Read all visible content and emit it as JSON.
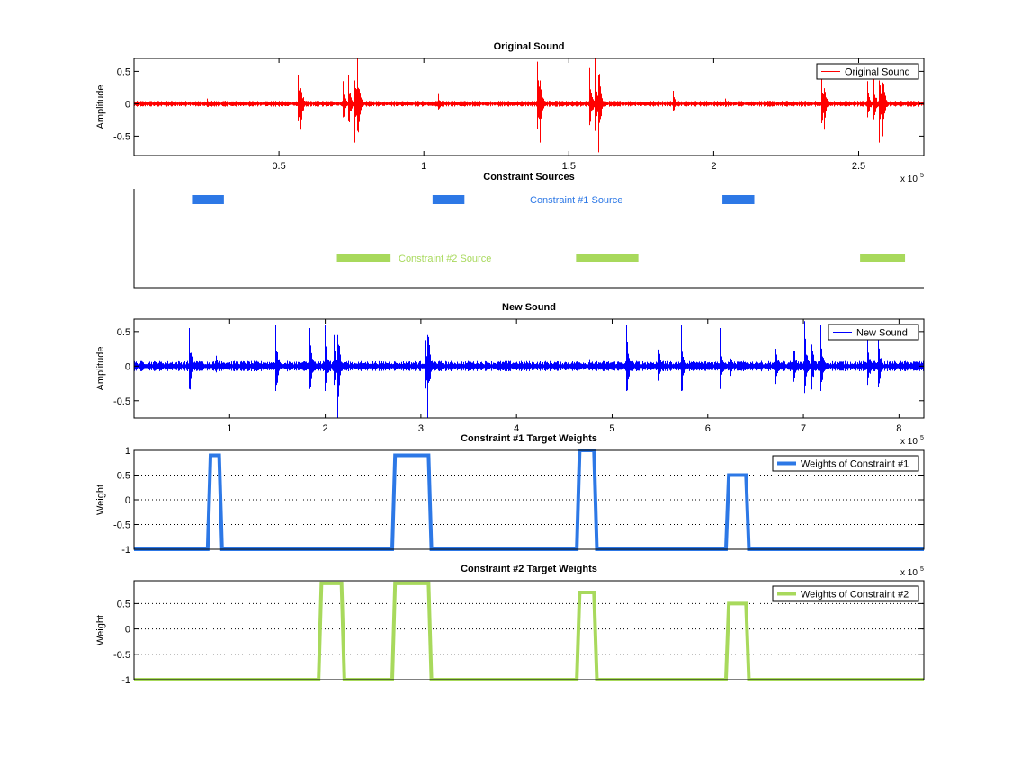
{
  "chart_data": [
    {
      "type": "line",
      "title": "Original Sound",
      "ylabel": "Amplitude",
      "xlim": [
        1,
        272500
      ],
      "ylim": [
        -0.8,
        0.7
      ],
      "xticks": [
        50000,
        100000,
        150000,
        200000,
        250000
      ],
      "xtick_labels": [
        "0.5",
        "1",
        "1.5",
        "2",
        "2.5"
      ],
      "x_exponent": "x 10",
      "x_exponent_power": "5",
      "yticks": [
        0.5,
        0,
        -0.5
      ],
      "ytick_labels": [
        "0.5",
        "0",
        "-0.5"
      ],
      "legend": {
        "label": "Original Sound",
        "position": "top-right"
      },
      "color": "#ff0000",
      "noise_level": 0.03,
      "events": [
        {
          "x": 25000,
          "amp": 0.08
        },
        {
          "x": 56500,
          "amp": 0.45
        },
        {
          "x": 57500,
          "amp": -0.4
        },
        {
          "x": 72000,
          "amp": 0.35
        },
        {
          "x": 74000,
          "amp": 0.45
        },
        {
          "x": 76000,
          "amp": -0.6
        },
        {
          "x": 77000,
          "amp": 0.7
        },
        {
          "x": 105000,
          "amp": 0.15
        },
        {
          "x": 139000,
          "amp": 0.65
        },
        {
          "x": 140000,
          "amp": -0.6
        },
        {
          "x": 157000,
          "amp": 0.55
        },
        {
          "x": 159000,
          "amp": 0.7
        },
        {
          "x": 160000,
          "amp": -0.75
        },
        {
          "x": 186000,
          "amp": 0.2
        },
        {
          "x": 204000,
          "amp": 0.08
        },
        {
          "x": 237000,
          "amp": 0.5
        },
        {
          "x": 238000,
          "amp": -0.4
        },
        {
          "x": 253000,
          "amp": 0.35
        },
        {
          "x": 255000,
          "amp": 0.4
        },
        {
          "x": 257000,
          "amp": -0.6
        },
        {
          "x": 258000,
          "amp": -0.8
        }
      ]
    },
    {
      "type": "bar",
      "title": "Constraint Sources",
      "xlim": [
        1,
        272500
      ],
      "series": [
        {
          "name": "Constraint #1 Source",
          "color": "#2d78e6",
          "row": 1,
          "intervals": [
            [
              20000,
              31000
            ],
            [
              103000,
              114000
            ],
            [
              203000,
              214000
            ]
          ]
        },
        {
          "name": "Constraint #2 Source",
          "color": "#a8d95c",
          "row": 2,
          "intervals": [
            [
              70000,
              88500
            ],
            [
              152500,
              174000
            ],
            [
              250500,
              266000
            ]
          ]
        }
      ]
    },
    {
      "type": "line",
      "title": "New Sound",
      "ylabel": "Amplitude",
      "xlim": [
        1,
        826000
      ],
      "ylim": [
        -0.75,
        0.68
      ],
      "xticks": [
        100000,
        200000,
        300000,
        400000,
        500000,
        600000,
        700000,
        800000
      ],
      "xtick_labels": [
        "1",
        "2",
        "3",
        "4",
        "5",
        "6",
        "7",
        "8"
      ],
      "x_exponent": "x 10",
      "x_exponent_power": "5",
      "yticks": [
        0.5,
        0,
        -0.5
      ],
      "ytick_labels": [
        "0.5",
        "0",
        "-0.5"
      ],
      "legend": {
        "label": "New Sound",
        "position": "top-right"
      },
      "color": "#0000ff",
      "noise_level": 0.05,
      "events": [
        {
          "x": 57000,
          "amp": 0.55
        },
        {
          "x": 86000,
          "amp": 0.15
        },
        {
          "x": 148000,
          "amp": 0.6
        },
        {
          "x": 183000,
          "amp": 0.55
        },
        {
          "x": 199000,
          "amp": 0.6
        },
        {
          "x": 209000,
          "amp": 0.45
        },
        {
          "x": 213000,
          "amp": -0.75
        },
        {
          "x": 304000,
          "amp": 0.6
        },
        {
          "x": 307000,
          "amp": -0.75
        },
        {
          "x": 476000,
          "amp": 0.1
        },
        {
          "x": 515000,
          "amp": 0.6
        },
        {
          "x": 548000,
          "amp": 0.5
        },
        {
          "x": 572000,
          "amp": 0.6
        },
        {
          "x": 612000,
          "amp": 0.55
        },
        {
          "x": 623000,
          "amp": 0.25
        },
        {
          "x": 670000,
          "amp": 0.5
        },
        {
          "x": 689000,
          "amp": 0.55
        },
        {
          "x": 701000,
          "amp": 0.65
        },
        {
          "x": 707000,
          "amp": -0.65
        },
        {
          "x": 718000,
          "amp": 0.6
        },
        {
          "x": 767000,
          "amp": 0.45
        },
        {
          "x": 778000,
          "amp": 0.5
        }
      ]
    },
    {
      "type": "line",
      "title": "Constraint #1 Target Weights",
      "ylabel": "Weight",
      "xlim": [
        1,
        826000
      ],
      "ylim": [
        -1,
        1
      ],
      "yticks": [
        1,
        0.5,
        0,
        -0.5,
        -1
      ],
      "ytick_labels": [
        "1",
        "0.5",
        "0",
        "-0.5",
        "-1"
      ],
      "x_exponent": "x 10",
      "x_exponent_power": "5",
      "grid": true,
      "legend": {
        "label": "Weights of Constraint #1",
        "position": "top-right"
      },
      "color": "#2d78e6",
      "pulses": [
        {
          "start": 77000,
          "end": 92000,
          "height": 0.9
        },
        {
          "start": 270000,
          "end": 311000,
          "height": 0.9
        },
        {
          "start": 463000,
          "end": 484000,
          "height": 1.0
        },
        {
          "start": 619000,
          "end": 643000,
          "height": 0.5
        }
      ]
    },
    {
      "type": "line",
      "title": "Constraint #2 Target Weights",
      "ylabel": "Weight",
      "xlim": [
        1,
        826000
      ],
      "ylim": [
        -1,
        0.95
      ],
      "yticks": [
        0.5,
        0,
        -0.5,
        -1
      ],
      "ytick_labels": [
        "0.5",
        "0",
        "-0.5",
        "-1"
      ],
      "grid": true,
      "legend": {
        "label": "Weights of Constraint #2",
        "position": "top-right"
      },
      "color": "#a8d95c",
      "pulses": [
        {
          "start": 193000,
          "end": 220000,
          "height": 0.9
        },
        {
          "start": 270000,
          "end": 311000,
          "height": 0.9
        },
        {
          "start": 463000,
          "end": 484000,
          "height": 0.72
        },
        {
          "start": 619000,
          "end": 643000,
          "height": 0.5
        }
      ]
    }
  ]
}
